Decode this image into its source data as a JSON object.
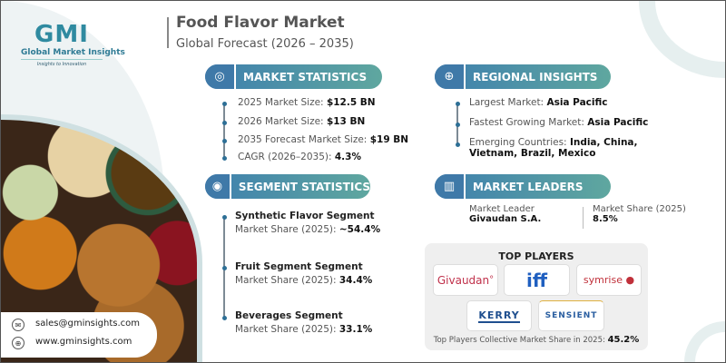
{
  "logo": {
    "mark": "GMI",
    "name": "Global Market Insights",
    "tagline": "Insights to Innovation"
  },
  "header": {
    "title": "Food Flavor Market",
    "subtitle": "Global Forecast (2026 – 2035)"
  },
  "market_statistics": {
    "label": "MARKET STATISTICS",
    "icon": "globe-chart-icon",
    "items": [
      {
        "label": "2025 Market Size:",
        "value": "$12.5 BN"
      },
      {
        "label": "2026 Market Size:",
        "value": "$13 BN"
      },
      {
        "label": "2035 Forecast Market Size:",
        "value": "$19 BN"
      },
      {
        "label": "CAGR (2026–2035):",
        "value": "4.3%"
      }
    ]
  },
  "segment_statistics": {
    "label": "SEGMENT STATISTICS",
    "icon": "target-chart-icon",
    "items": [
      {
        "name": "Synthetic Flavor Segment",
        "label": "Market Share (2025):",
        "value": "~54.4%"
      },
      {
        "name": "Fruit Segment Segment",
        "label": "Market Share (2025):",
        "value": "34.4%"
      },
      {
        "name": "Beverages Segment",
        "label": "Market Share (2025):",
        "value": "33.1%"
      }
    ]
  },
  "regional_insights": {
    "label": "REGIONAL INSIGHTS",
    "icon": "globe-icon",
    "items": [
      {
        "label": "Largest Market:",
        "value": "Asia Pacific"
      },
      {
        "label": "Fastest Growing Market:",
        "value": "Asia Pacific"
      },
      {
        "label": "Emerging Countries:",
        "value": "India, China,",
        "value2": "Vietnam, Brazil, Mexico"
      }
    ]
  },
  "market_leaders": {
    "label": "MARKET LEADERS",
    "icon": "leader-chart-icon",
    "leader_label": "Market Leader",
    "leader": "Givaudan S.A.",
    "share_label": "Market Share (2025)",
    "share": "8.5%"
  },
  "top_players": {
    "title": "TOP PLAYERS",
    "players": [
      "Givaudan",
      "iff",
      "symrise",
      "KERRY",
      "SENSIENT"
    ],
    "footer_label": "Top Players Collective Market Share in 2025:",
    "footer_value": "45.2%"
  },
  "contact": {
    "email": "sales@gminsights.com",
    "website": "www.gminsights.com"
  },
  "colors": {
    "accent": "#3e7fae",
    "teal": "#5fa79f",
    "givaudan": "#c0304a",
    "iff": "#1f5fc0",
    "symrise": "#c0303a",
    "kerry": "#1f4f8f",
    "sensient": "#2a5ea0"
  }
}
